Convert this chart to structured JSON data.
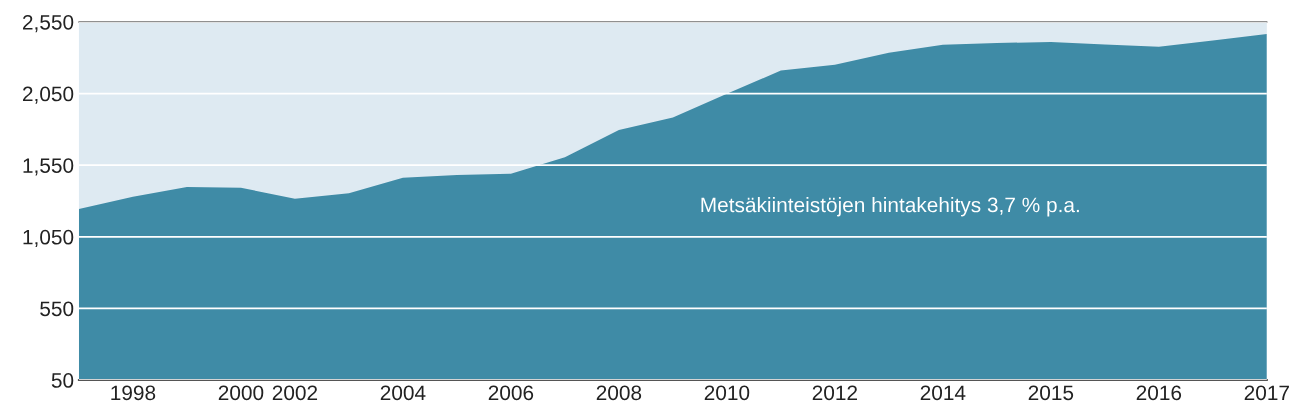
{
  "chart_data": {
    "type": "area",
    "categories": [
      null,
      "1998",
      null,
      "2000",
      "2002",
      null,
      "2004",
      null,
      "2006",
      null,
      "2008",
      null,
      "2010",
      null,
      "2012",
      null,
      "2014",
      null,
      "2015",
      null,
      "2016",
      null,
      "2017"
    ],
    "series": [
      {
        "color": "#3f8ba6",
        "values": [
          1244,
          1329,
          1398,
          1393,
          1315,
          1354,
          1462,
          1482,
          1491,
          1605,
          1796,
          1883,
          2048,
          2211,
          2252,
          2335,
          2390,
          2403,
          2410,
          2392,
          2376,
          2421,
          2466
        ]
      }
    ],
    "ylim": [
      50,
      2550
    ],
    "yticks": [
      {
        "value": 50,
        "label": "50"
      },
      {
        "value": 550,
        "label": "550"
      },
      {
        "value": 1050,
        "label": "1,050"
      },
      {
        "value": 1550,
        "label": "1,550"
      },
      {
        "value": 2050,
        "label": "2,050"
      },
      {
        "value": 2550,
        "label": "2,550"
      }
    ],
    "grid": "y",
    "legend": false,
    "annotations": [
      {
        "text": "Metsäkiinteistöjen hintakehitys 3,7 % p.a."
      }
    ]
  }
}
